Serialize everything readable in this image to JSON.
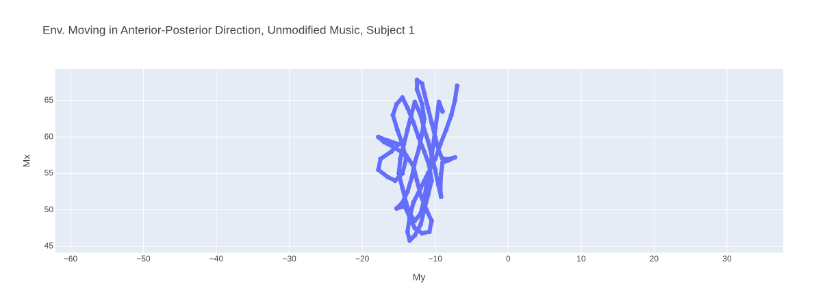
{
  "chart_data": {
    "type": "scatter",
    "title": "Env. Moving in Anterior-Posterior Direction, Unmodified Music, Subject 1",
    "x_label": "My",
    "y_label": "Mx",
    "xlim": [
      -62.06,
      37.7
    ],
    "ylim": [
      44.15,
      69.3
    ],
    "xticks": [
      {
        "value": -60,
        "label": "−60"
      },
      {
        "value": -50,
        "label": "−50"
      },
      {
        "value": -40,
        "label": "−40"
      },
      {
        "value": -30,
        "label": "−30"
      },
      {
        "value": -20,
        "label": "−20"
      },
      {
        "value": -10,
        "label": "−10"
      },
      0,
      10,
      20,
      30
    ],
    "yticks": [
      45,
      50,
      55,
      60,
      65
    ],
    "grid": true,
    "series": [
      {
        "color": "#636efa",
        "x": [
          -7.0,
          -7.3,
          -7.8,
          -8.5,
          -9.3,
          -10,
          -11,
          -12,
          -13,
          -13.5,
          -13.8,
          -13.5,
          -12.8,
          -12,
          -11.5,
          -11,
          -10.5,
          -10.8,
          -11.5,
          -12.3,
          -13,
          -13.8,
          -14.5,
          -15.3,
          -15.8,
          -15.2,
          -14.5,
          -14,
          -14.5,
          -15.5,
          -16.5,
          -17.8,
          -17.5,
          -16,
          -15,
          -16.5,
          -17.8,
          -17,
          -15.5,
          -14,
          -13,
          -12.5,
          -12,
          -11.2,
          -10.5,
          -10.8,
          -11.8,
          -12.8,
          -13.5,
          -14.2,
          -15.3,
          -14.5,
          -13.8,
          -13.2,
          -12.8,
          -12.2,
          -11.8,
          -11.5,
          -11.8,
          -12.5,
          -12.5,
          -11.8,
          -11.5,
          -11,
          -10.5,
          -10,
          -9.5,
          -9,
          -8,
          -7.3,
          -8.2,
          -9,
          -9.2,
          -9.3,
          -9.2,
          -9.6,
          -10,
          -10.5,
          -11,
          -11.5,
          -12,
          -12.8,
          -13.3,
          -13.8,
          -14.3,
          -14.8,
          -15,
          -14.5,
          -14,
          -13.5,
          -12.8,
          -12,
          -11.5,
          -11.2,
          -10.8,
          -9.5,
          -9
        ],
        "y": [
          67.0,
          65,
          63,
          61,
          59,
          57,
          55,
          53,
          51,
          49,
          47,
          45.8,
          46.5,
          48,
          50,
          52,
          54,
          56,
          58,
          60,
          62,
          64,
          65.4,
          64.5,
          63,
          61,
          59,
          57,
          55,
          54,
          54.5,
          55.5,
          57,
          58,
          59,
          59.5,
          60,
          59.3,
          58.5,
          57.5,
          56,
          54,
          52,
          50,
          48.5,
          47,
          46.8,
          47.5,
          49,
          50.5,
          50.2,
          51,
          52.5,
          54.5,
          56.5,
          58.5,
          60.5,
          62.5,
          64.5,
          66.5,
          67.8,
          67.3,
          66,
          64,
          62,
          60,
          58,
          57,
          57,
          57.2,
          56.8,
          56.5,
          55,
          53,
          51.8,
          53.5,
          55.5,
          57.5,
          59.5,
          61,
          63,
          64.8,
          63,
          61,
          59,
          57,
          55,
          53,
          51,
          49.5,
          48.5,
          49.5,
          51.5,
          53.5,
          55,
          64.8,
          63.5
        ]
      }
    ]
  }
}
